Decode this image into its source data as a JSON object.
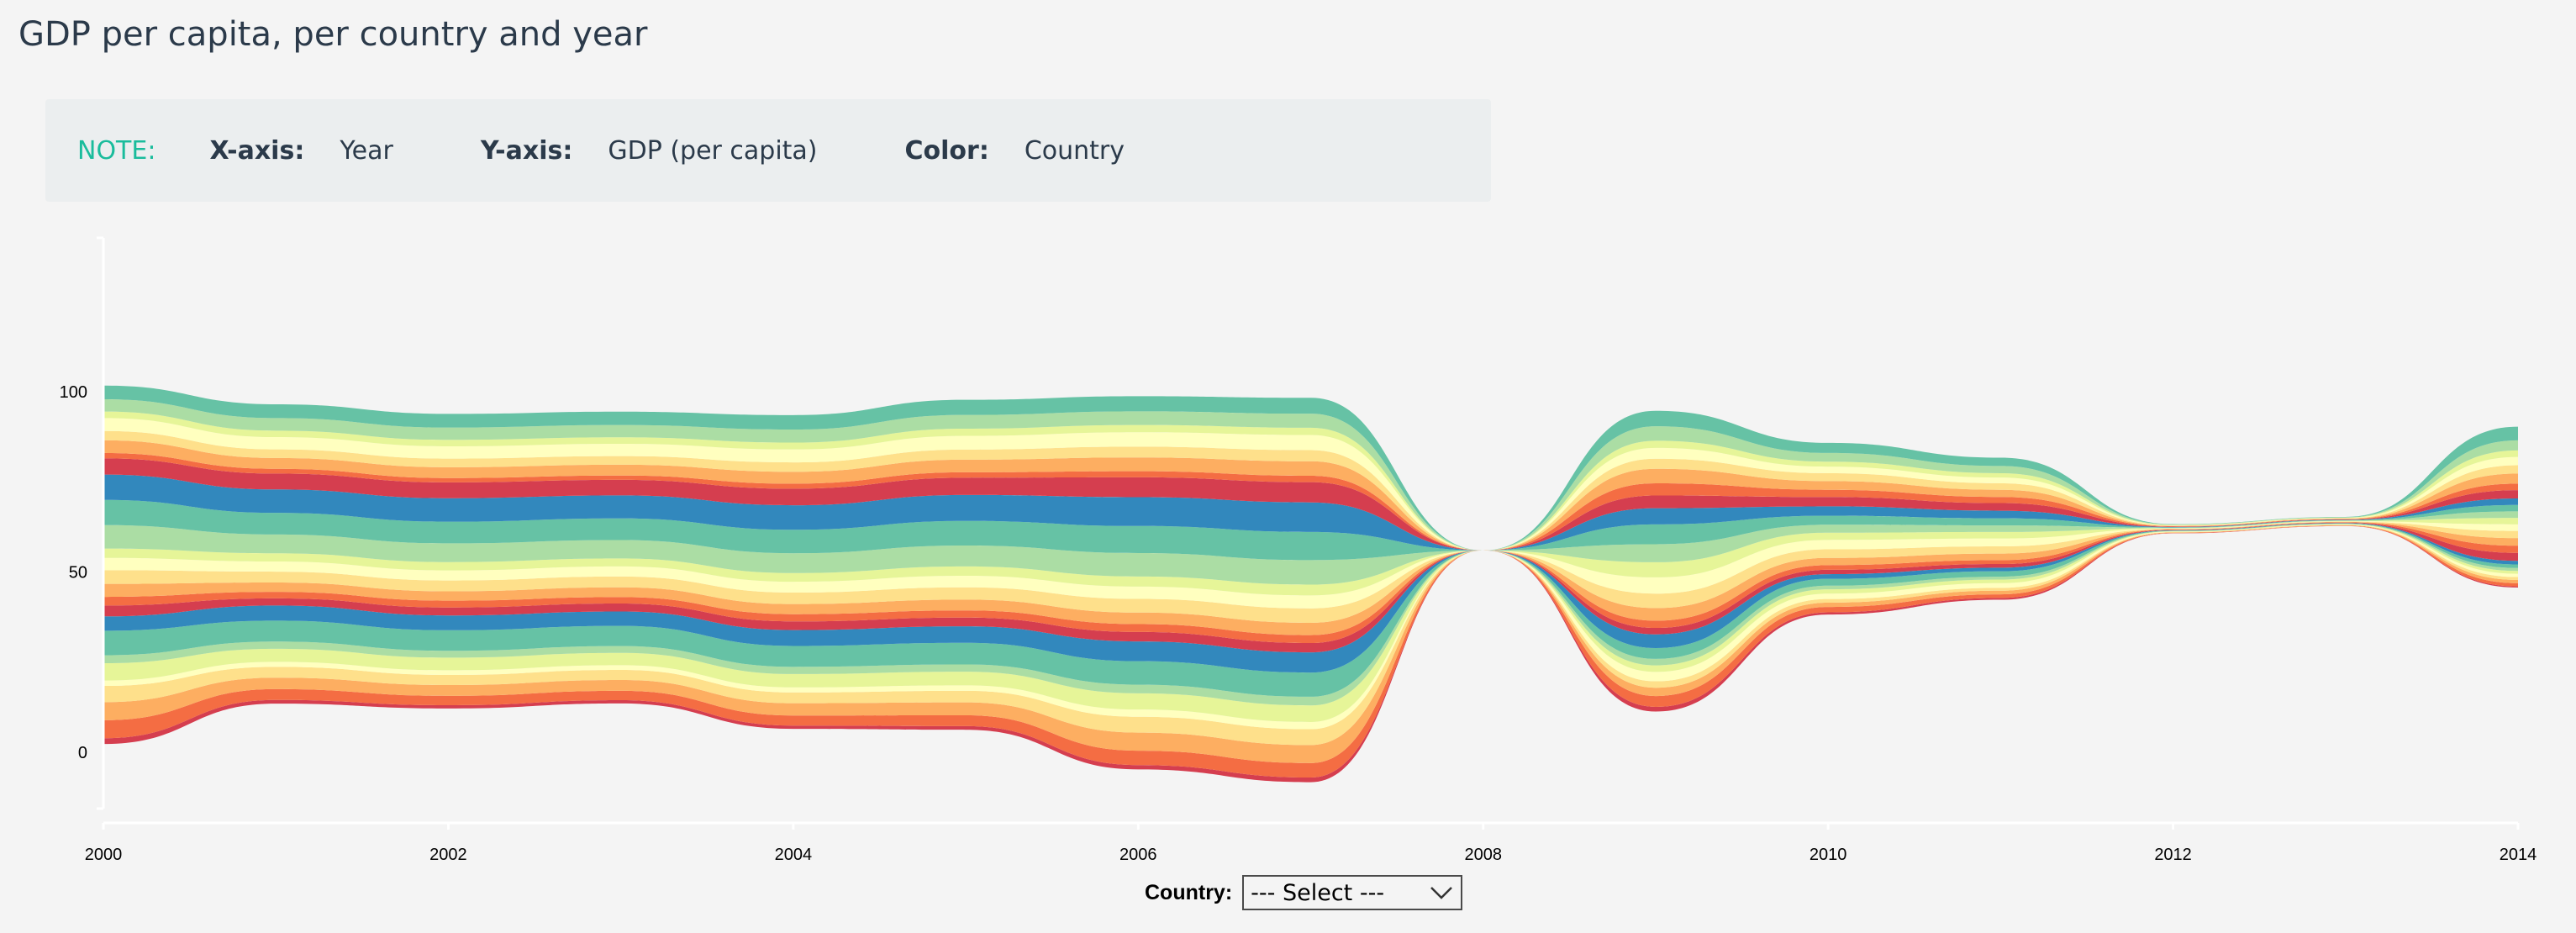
{
  "title": "GDP per capita, per country and year",
  "note": {
    "label": "NOTE:",
    "x_key": "X-axis:",
    "x_value": "Year",
    "y_key": "Y-axis:",
    "y_value": "GDP (per capita)",
    "color_key": "Color:",
    "color_value": "Country"
  },
  "country_filter": {
    "label": "Country:",
    "selected": "--- Select ---"
  },
  "chart_data": {
    "type": "area",
    "variant": "streamgraph",
    "title": "",
    "xlabel": "",
    "ylabel": "",
    "x": [
      2000,
      2001,
      2002,
      2003,
      2004,
      2005,
      2006,
      2007,
      2008,
      2009,
      2010,
      2011,
      2012,
      2013,
      2014
    ],
    "x_ticks": [
      2000,
      2002,
      2004,
      2006,
      2008,
      2010,
      2012,
      2014
    ],
    "y_ticks": [
      0,
      50,
      100
    ],
    "ylim": [
      -18,
      145
    ],
    "grid": false,
    "legend": "none",
    "palette": [
      "#d53e4f",
      "#f46d43",
      "#fdae61",
      "#fee08b",
      "#ffffbf",
      "#e6f598",
      "#abdda4",
      "#66c2a5",
      "#3288bd"
    ],
    "series": [
      {
        "values": [
          1.6,
          1.0,
          0.9,
          0.9,
          0.9,
          1.0,
          1.2,
          1.3,
          0,
          1.3,
          0.6,
          0.5,
          0.05,
          0.05,
          0.3
        ]
      },
      {
        "values": [
          5.0,
          3.0,
          2.6,
          2.6,
          2.8,
          3.0,
          4.0,
          4.0,
          0,
          3.0,
          1.5,
          1.0,
          0.1,
          0.1,
          0.9
        ]
      },
      {
        "values": [
          5.0,
          3.2,
          3.0,
          3.0,
          3.4,
          3.6,
          5.0,
          5.0,
          0,
          2.3,
          1.2,
          1.0,
          0.1,
          0.1,
          0.9
        ]
      },
      {
        "values": [
          4.5,
          3.0,
          2.8,
          2.8,
          3.0,
          3.2,
          4.4,
          4.4,
          0,
          1.8,
          1.0,
          0.8,
          0.1,
          0.1,
          0.8
        ]
      },
      {
        "values": [
          1.5,
          1.4,
          1.3,
          1.3,
          1.4,
          1.5,
          2.0,
          2.0,
          0,
          2.6,
          1.5,
          1.3,
          0.1,
          0.1,
          0.9
        ]
      },
      {
        "values": [
          4.8,
          3.6,
          3.5,
          3.4,
          3.7,
          3.8,
          4.5,
          4.6,
          0,
          1.8,
          1.2,
          1.0,
          0.1,
          0.1,
          0.8
        ]
      },
      {
        "values": [
          2.2,
          2.0,
          1.9,
          1.9,
          2.0,
          2.0,
          2.4,
          2.4,
          0,
          1.8,
          1.0,
          0.8,
          0.1,
          0.1,
          0.8
        ]
      },
      {
        "values": [
          6.8,
          5.8,
          5.7,
          5.6,
          5.8,
          6.0,
          6.5,
          6.7,
          0,
          3.0,
          1.9,
          1.5,
          0.1,
          0.1,
          1.0
        ]
      },
      {
        "values": [
          4.0,
          4.2,
          4.1,
          4.0,
          4.4,
          4.6,
          5.5,
          5.6,
          0,
          3.8,
          1.3,
          1.0,
          0.1,
          0.1,
          1.0
        ]
      },
      {
        "values": [
          3.0,
          2.0,
          2.2,
          2.2,
          2.4,
          2.4,
          2.6,
          2.6,
          0,
          1.8,
          1.2,
          1.0,
          0.1,
          0.1,
          2.2
        ]
      },
      {
        "values": [
          2.4,
          1.8,
          1.9,
          1.8,
          2.0,
          2.0,
          2.2,
          2.2,
          0,
          2.0,
          1.3,
          1.1,
          0.1,
          0.1,
          2.0
        ]
      },
      {
        "values": [
          3.6,
          2.6,
          2.6,
          2.7,
          2.8,
          3.0,
          3.2,
          3.4,
          0,
          3.5,
          2.0,
          1.8,
          0.1,
          0.1,
          2.1
        ]
      },
      {
        "values": [
          3.8,
          3.0,
          3.0,
          3.0,
          3.2,
          3.4,
          3.8,
          4.0,
          0,
          4.0,
          2.4,
          2.0,
          0.1,
          0.1,
          2.0
        ]
      },
      {
        "values": [
          3.4,
          2.8,
          2.8,
          2.8,
          3.0,
          3.2,
          3.4,
          3.6,
          0,
          4.5,
          2.6,
          2.2,
          0.1,
          0.1,
          1.8
        ]
      },
      {
        "values": [
          2.6,
          2.3,
          2.3,
          2.2,
          2.4,
          2.6,
          2.8,
          3.0,
          0,
          4.2,
          2.0,
          1.8,
          0.1,
          0.1,
          1.8
        ]
      },
      {
        "values": [
          6.5,
          5.2,
          5.2,
          5.1,
          5.5,
          5.8,
          6.5,
          6.8,
          0,
          5.0,
          2.2,
          1.8,
          0.1,
          0.1,
          1.8
        ]
      },
      {
        "values": [
          7.0,
          6.0,
          6.0,
          6.0,
          6.5,
          6.8,
          7.5,
          7.8,
          0,
          5.5,
          2.5,
          2.0,
          0.1,
          0.1,
          1.8
        ]
      },
      {
        "values": [
          7.0,
          6.5,
          6.5,
          6.4,
          6.8,
          7.2,
          8.0,
          8.2,
          0,
          4.5,
          2.6,
          2.1,
          0.1,
          0.1,
          1.8
        ]
      },
      {
        "values": [
          4.5,
          4.4,
          4.4,
          4.3,
          4.6,
          4.8,
          5.5,
          5.6,
          0,
          3.5,
          2.6,
          2.1,
          0.1,
          0.1,
          2.3
        ]
      },
      {
        "values": [
          1.5,
          1.3,
          1.2,
          1.2,
          1.4,
          1.5,
          1.7,
          1.8,
          0,
          3.4,
          2.0,
          1.7,
          0.1,
          0.1,
          1.8
        ]
      },
      {
        "values": [
          3.5,
          3.0,
          3.0,
          3.0,
          3.3,
          3.5,
          3.8,
          4.0,
          0,
          4.0,
          2.4,
          2.0,
          0.1,
          0.1,
          2.8
        ]
      },
      {
        "values": [
          2.6,
          2.4,
          2.4,
          2.4,
          2.6,
          2.8,
          3.0,
          3.1,
          0,
          2.8,
          2.2,
          1.8,
          0.1,
          0.1,
          2.3
        ]
      },
      {
        "values": [
          3.6,
          3.4,
          3.4,
          3.4,
          3.6,
          3.8,
          4.0,
          4.2,
          0,
          3.0,
          1.8,
          1.6,
          0.1,
          0.1,
          2.3
        ]
      },
      {
        "values": [
          1.8,
          1.8,
          1.8,
          1.8,
          1.9,
          2.0,
          2.0,
          2.0,
          0,
          2.0,
          1.4,
          1.2,
          0.1,
          0.1,
          1.8
        ]
      },
      {
        "values": [
          3.4,
          3.5,
          3.4,
          3.4,
          3.6,
          3.8,
          3.8,
          3.9,
          0,
          4.0,
          2.4,
          2.0,
          0.1,
          0.1,
          2.8
        ]
      },
      {
        "values": [
          3.8,
          3.8,
          3.8,
          3.7,
          4.0,
          4.2,
          4.2,
          4.4,
          0,
          4.3,
          2.8,
          2.3,
          0.1,
          0.1,
          3.8
        ]
      }
    ]
  }
}
